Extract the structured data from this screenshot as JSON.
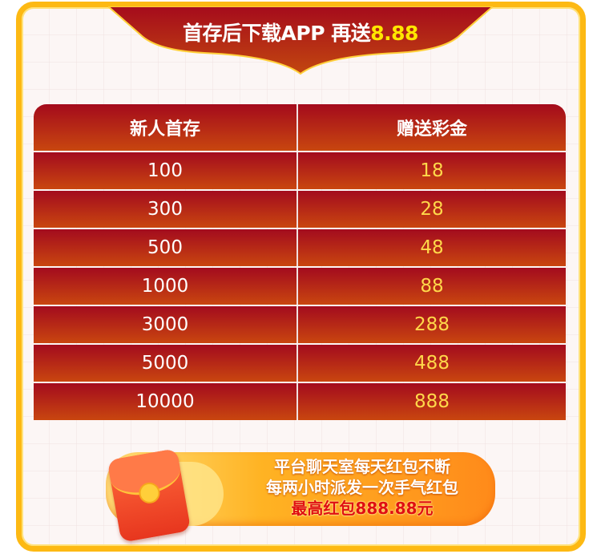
{
  "banner": {
    "title": "首存后下载APP 再送",
    "highlight": "8.88"
  },
  "table": {
    "headers": [
      "新人首存",
      "赠送彩金"
    ],
    "rows": [
      [
        "100",
        "18"
      ],
      [
        "300",
        "28"
      ],
      [
        "500",
        "48"
      ],
      [
        "1000",
        "88"
      ],
      [
        "3000",
        "288"
      ],
      [
        "5000",
        "488"
      ],
      [
        "10000",
        "888"
      ]
    ]
  },
  "promo": {
    "line1": "平台聊天室每天红包不断",
    "line2": "每两小时派发一次手气红包",
    "line3": "最高红包888.88元"
  },
  "colors": {
    "frame": "#fdb913",
    "table_red": "#a30b1e",
    "highlight_yellow": "#ffe600"
  }
}
